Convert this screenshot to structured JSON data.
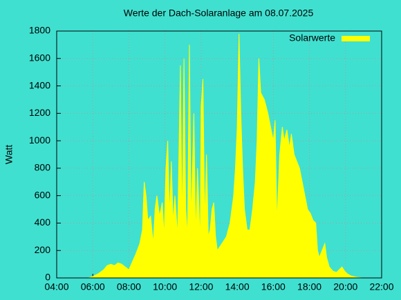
{
  "chart_data": {
    "type": "area",
    "title": "Werte der Dach-Solaranlage am 08.07.2025",
    "y_label": "Watt",
    "legend": "top right",
    "grid": true,
    "xlim": [
      4,
      22
    ],
    "xticks": [
      {
        "value": 4,
        "label": "04:00"
      },
      {
        "value": 6,
        "label": "06:00"
      },
      {
        "value": 8,
        "label": "08:00"
      },
      {
        "value": 10,
        "label": "10:00"
      },
      {
        "value": 12,
        "label": "12:00"
      },
      {
        "value": 14,
        "label": "14:00"
      },
      {
        "value": 16,
        "label": "16:00"
      },
      {
        "value": 18,
        "label": "18:00"
      },
      {
        "value": 20,
        "label": "20:00"
      },
      {
        "value": 22,
        "label": "22:00"
      }
    ],
    "ylim": [
      0,
      1800
    ],
    "yticks": [
      0,
      200,
      400,
      600,
      800,
      1000,
      1200,
      1400,
      1600,
      1800
    ],
    "series": [
      {
        "name": "Solarwerte",
        "color": "#ffff00",
        "x": [
          5.75,
          6.0,
          6.3,
          6.6,
          6.8,
          7.0,
          7.2,
          7.4,
          7.6,
          7.8,
          8.0,
          8.2,
          8.4,
          8.6,
          8.75,
          8.85,
          8.95,
          9.05,
          9.2,
          9.35,
          9.45,
          9.55,
          9.7,
          9.85,
          9.95,
          10.05,
          10.15,
          10.25,
          10.35,
          10.45,
          10.55,
          10.7,
          10.85,
          10.95,
          11.05,
          11.15,
          11.25,
          11.35,
          11.45,
          11.6,
          11.7,
          11.8,
          11.95,
          12.0,
          12.1,
          12.2,
          12.3,
          12.4,
          12.5,
          12.6,
          12.7,
          12.8,
          12.9,
          13.0,
          13.2,
          13.4,
          13.6,
          13.8,
          13.9,
          14.0,
          14.1,
          14.2,
          14.3,
          14.4,
          14.55,
          14.7,
          14.85,
          15.0,
          15.1,
          15.2,
          15.3,
          15.5,
          15.7,
          15.85,
          16.0,
          16.1,
          16.2,
          16.35,
          16.5,
          16.6,
          16.75,
          16.9,
          17.0,
          17.15,
          17.3,
          17.45,
          17.6,
          17.75,
          17.9,
          18.05,
          18.2,
          18.35,
          18.45,
          18.55,
          18.7,
          18.85,
          18.95,
          19.1,
          19.3,
          19.5,
          19.65,
          19.8,
          19.95,
          20.1,
          20.3,
          20.6,
          20.9
        ],
        "values": [
          0,
          10,
          30,
          60,
          90,
          100,
          90,
          110,
          100,
          80,
          60,
          120,
          180,
          250,
          350,
          700,
          600,
          420,
          450,
          250,
          500,
          600,
          450,
          550,
          300,
          800,
          1000,
          450,
          850,
          400,
          600,
          300,
          1550,
          350,
          1600,
          500,
          300,
          1700,
          400,
          1200,
          300,
          800,
          250,
          1250,
          1450,
          400,
          900,
          300,
          350,
          500,
          550,
          300,
          200,
          220,
          260,
          300,
          400,
          600,
          800,
          1100,
          1780,
          1200,
          800,
          500,
          350,
          350,
          500,
          700,
          1000,
          1600,
          1350,
          1300,
          1200,
          1100,
          1000,
          1150,
          400,
          900,
          1100,
          1000,
          1080,
          950,
          1050,
          900,
          850,
          800,
          700,
          600,
          500,
          470,
          420,
          400,
          200,
          150,
          200,
          250,
          150,
          80,
          50,
          40,
          60,
          80,
          50,
          30,
          15,
          5,
          0
        ]
      }
    ]
  }
}
